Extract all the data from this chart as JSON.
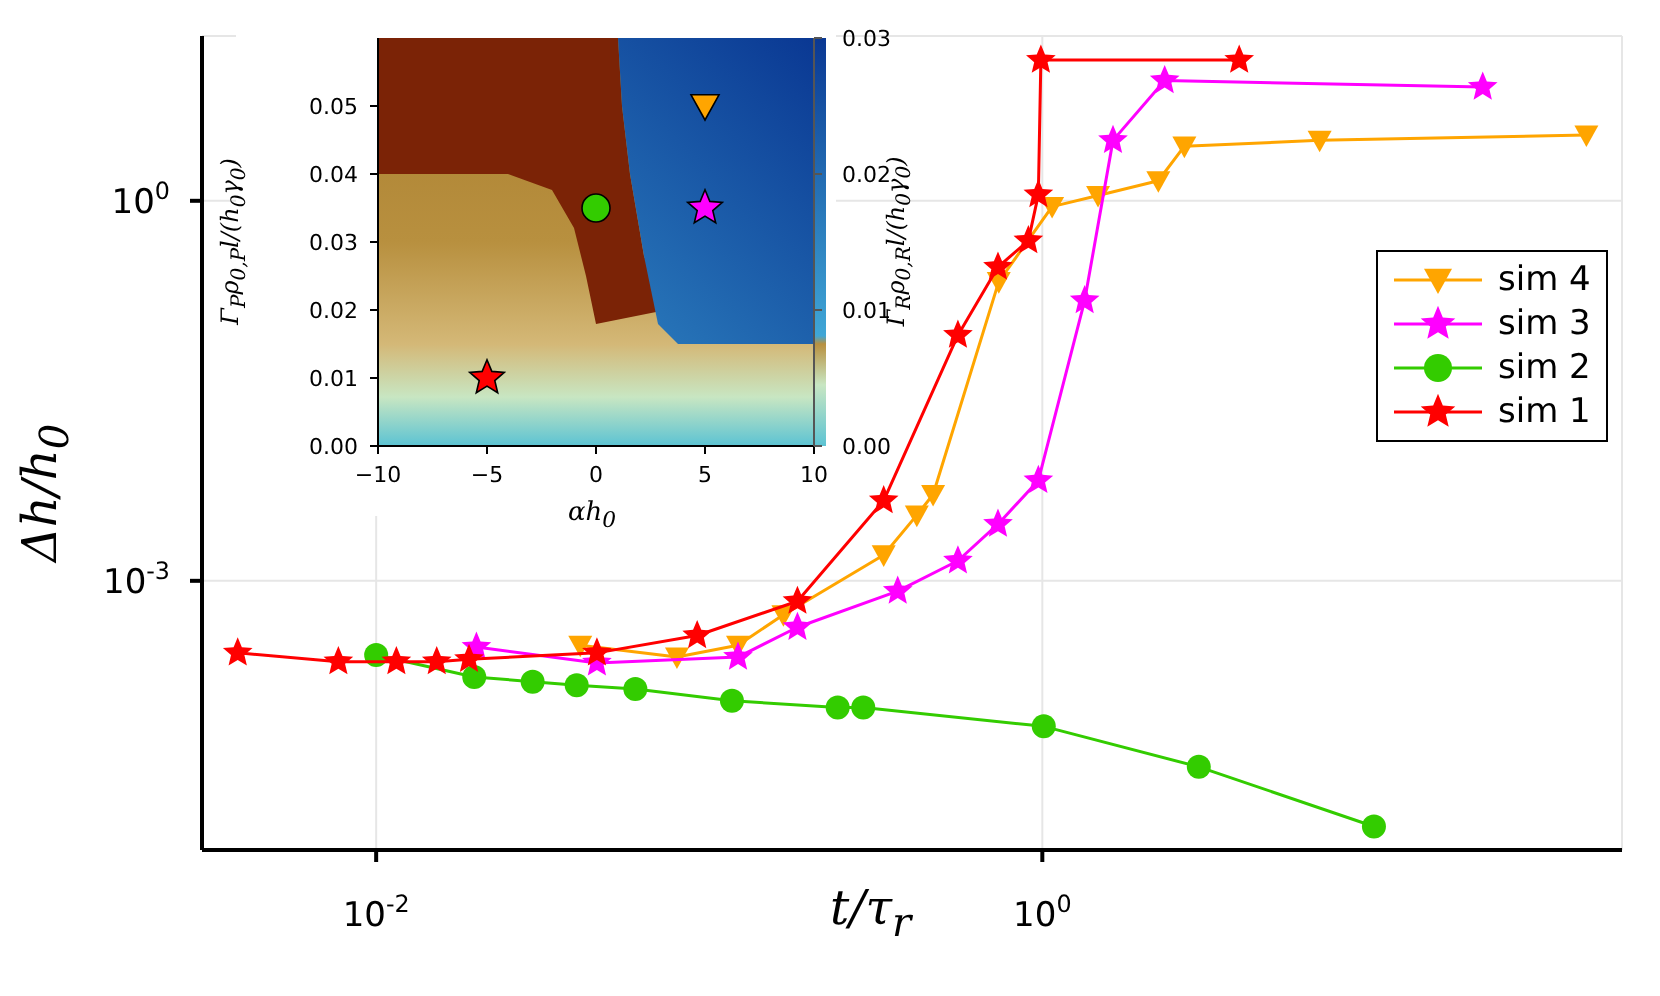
{
  "chart_data": [
    {
      "type": "line",
      "xlabel": "t/τ$_{r}$",
      "ylabel": "Δh/h$_{0}$",
      "log": "xy",
      "grid": true,
      "legend": "right",
      "xlim": [
        0.003,
        55
      ],
      "ylim": [
        7.5e-06,
        20
      ],
      "xticks": [
        {
          "value": 0.01,
          "label": "10$^{-2}$"
        },
        {
          "value": 1,
          "label": "10$^{0}$"
        }
      ],
      "yticks": [
        {
          "value": 0.001,
          "label": "10$^{-3}$"
        },
        {
          "value": 1,
          "label": "10$^{0}$"
        }
      ],
      "series": [
        {
          "name": "sim 4",
          "color": "#ffa500",
          "marker": "triangle",
          "x": [
            0.041,
            0.08,
            0.122,
            0.167,
            0.334,
            0.42,
            0.47,
            0.74,
            1.07,
            1.47,
            2.23,
            2.67,
            6.8,
            43
          ],
          "values": [
            0.00031,
            0.00025,
            0.00031,
            0.00054,
            0.0016,
            0.0033,
            0.0048,
            0.23,
            0.9,
            1.1,
            1.44,
            2.7,
            3.0,
            3.3
          ]
        },
        {
          "name": "sim 3",
          "color": "#ff00ff",
          "marker": "star",
          "x": [
            0.02,
            0.046,
            0.122,
            0.184,
            0.368,
            0.558,
            0.736,
            0.973,
            1.34,
            1.63,
            2.33,
            21
          ],
          "values": [
            0.0003,
            0.000225,
            0.00025,
            0.00043,
            0.00083,
            0.00144,
            0.0028,
            0.0062,
            0.163,
            3.0,
            8.9,
            7.9
          ]
        },
        {
          "name": "sim 2",
          "color": "#33cc00",
          "marker": "circle",
          "x": [
            0.01,
            0.0197,
            0.0295,
            0.04,
            0.06,
            0.117,
            0.243,
            0.29,
            1.01,
            2.95,
            9.9
          ],
          "values": [
            0.00026,
            0.000174,
            0.00016,
            0.00015,
            0.00014,
            0.000113,
            0.0001,
            0.0001,
            7.1e-05,
            3.4e-05,
            1.15e-05
          ]
        },
        {
          "name": "sim 1",
          "color": "#ff0000",
          "marker": "star",
          "x": [
            0.00384,
            0.0077,
            0.0115,
            0.0152,
            0.019,
            0.046,
            0.092,
            0.184,
            0.334,
            0.558,
            0.736,
            0.908,
            0.973,
            0.99,
            3.9
          ],
          "values": [
            0.00027,
            0.00023,
            0.00023,
            0.00023,
            0.00024,
            0.00027,
            0.00037,
            0.00069,
            0.0043,
            0.087,
            0.3,
            0.485,
            1.12,
            12.9,
            12.9
          ]
        }
      ]
    },
    {
      "type": "scatter",
      "xlabel": "αh$_{0}$",
      "ylabel": "Γ$_{P}$ρ$_{0,P}$l/(h$_{0}$γ$_{0}$)",
      "y2label": "Γ$_{R}$ρ$_{0,R}$l/(h$_{0}$γ$_{0}$)",
      "xlim": [
        -10,
        10
      ],
      "ylim": [
        0,
        0.06
      ],
      "y2lim": [
        0,
        0.03
      ],
      "xticks": [
        {
          "value": -10,
          "label": "−10"
        },
        {
          "value": -5,
          "label": "−5"
        },
        0,
        5,
        10
      ],
      "yticks": [
        {
          "value": 0,
          "label": "0.00"
        },
        {
          "value": 0.01,
          "label": "0.01"
        },
        {
          "value": 0.02,
          "label": "0.02"
        },
        {
          "value": 0.03,
          "label": "0.03"
        },
        {
          "value": 0.04,
          "label": "0.04"
        },
        {
          "value": 0.05,
          "label": "0.05"
        }
      ],
      "y2ticks": [
        {
          "value": 0,
          "label": "0.00"
        },
        {
          "value": 0.01,
          "label": "0.01"
        },
        {
          "value": 0.02,
          "label": "0.02"
        },
        {
          "value": 0.03,
          "label": "0.03"
        }
      ],
      "series": [
        {
          "color": "#ffa500",
          "marker": "triangle",
          "x": [
            5
          ],
          "values": [
            0.05
          ]
        },
        {
          "color": "#ff00ff",
          "marker": "star",
          "x": [
            5
          ],
          "values": [
            0.035
          ]
        },
        {
          "color": "#33cc00",
          "marker": "circle",
          "x": [
            0
          ],
          "values": [
            0.035
          ]
        },
        {
          "color": "#ff0000",
          "marker": "star",
          "x": [
            -5
          ],
          "values": [
            0.01
          ]
        }
      ]
    }
  ]
}
